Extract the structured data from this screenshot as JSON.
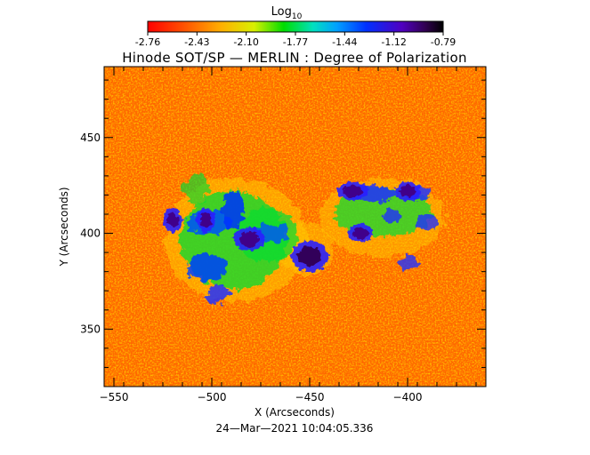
{
  "colorbar": {
    "title": "Log",
    "title_subscript": "10",
    "tick_labels": [
      "-2.76",
      "-2.43",
      "-2.10",
      "-1.77",
      "-1.44",
      "-1.12",
      "-0.79"
    ],
    "range": [
      -2.76,
      -0.79
    ],
    "colormap": "rainbow (red to green to blue to black)"
  },
  "plot": {
    "title": "Hinode SOT/SP — MERLIN : Degree of Polarization",
    "x_axis": {
      "label": "X (Arcseconds)",
      "range": [
        -555,
        -360
      ],
      "tick_values": [
        -550,
        -500,
        -450,
        -400
      ],
      "tick_labels": [
        "−550",
        "−500",
        "−450",
        "−400"
      ]
    },
    "y_axis": {
      "label": "Y (Arcseconds)",
      "range": [
        320,
        487
      ],
      "tick_values": [
        350,
        400,
        450
      ],
      "tick_labels": [
        "350",
        "400",
        "450"
      ]
    },
    "background_level": "orange-red (about -2.6)",
    "spots": [
      {
        "x": -450,
        "y": 388,
        "rx": 6,
        "ry": 5,
        "level": -0.79
      },
      {
        "x": -481,
        "y": 397,
        "rx": 5,
        "ry": 4,
        "level": -0.9
      },
      {
        "x": -503,
        "y": 407,
        "rx": 3,
        "ry": 4,
        "level": -0.85
      },
      {
        "x": -520,
        "y": 407,
        "rx": 3,
        "ry": 4,
        "level": -0.85
      },
      {
        "x": -424,
        "y": 400,
        "rx": 4,
        "ry": 3,
        "level": -0.85
      },
      {
        "x": -428,
        "y": 422,
        "rx": 5,
        "ry": 3,
        "level": -1.1
      },
      {
        "x": -400,
        "y": 422,
        "rx": 4,
        "ry": 3,
        "level": -1.1
      }
    ]
  },
  "timestamp": "24—Mar—2021 10:04:05.336"
}
